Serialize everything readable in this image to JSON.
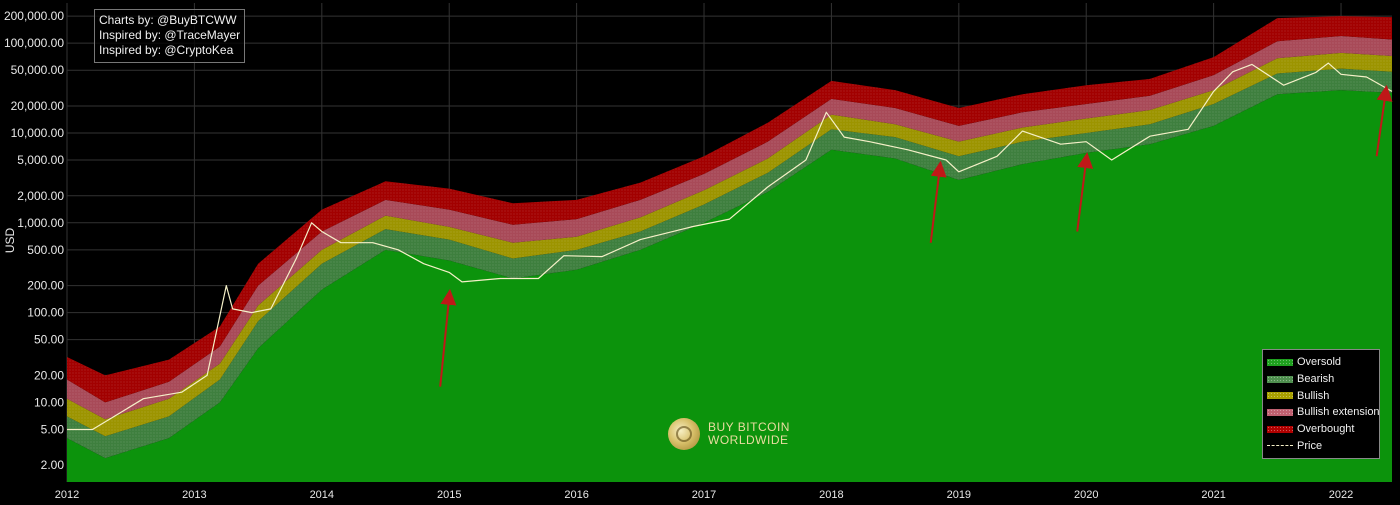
{
  "credits": [
    "Charts by: @BuyBTCWW",
    "Inspired by: @TraceMayer",
    "Inspired by: @CryptoKea"
  ],
  "brand": {
    "line1": "BUY BITCOIN",
    "line2": "WORLDWIDE"
  },
  "legend": {
    "placement": "bottom-right",
    "items": [
      {
        "label": "Oversold",
        "color": "#1ea01e"
      },
      {
        "label": "Bearish",
        "color": "#4f8f4f"
      },
      {
        "label": "Bullish",
        "color": "#a8a000"
      },
      {
        "label": "Bullish extension",
        "color": "#c06070"
      },
      {
        "label": "Overbought",
        "color": "#b00000"
      },
      {
        "label": "Price",
        "color": "#f5f0c8"
      }
    ]
  },
  "chart_data": {
    "type": "area",
    "ylabel": "USD",
    "yscale": "log",
    "ylim": [
      1.3,
      280000
    ],
    "xlim": [
      2012.0,
      2022.4
    ],
    "y_ticks": [
      {
        "value": 2,
        "label": "2.00"
      },
      {
        "value": 5,
        "label": "5.00"
      },
      {
        "value": 10,
        "label": "10.00"
      },
      {
        "value": 20,
        "label": "20.00"
      },
      {
        "value": 50,
        "label": "50.00"
      },
      {
        "value": 100,
        "label": "100.00"
      },
      {
        "value": 200,
        "label": "200.00"
      },
      {
        "value": 500,
        "label": "500.00"
      },
      {
        "value": 1000,
        "label": "1,000.00"
      },
      {
        "value": 2000,
        "label": "2,000.00"
      },
      {
        "value": 5000,
        "label": "5,000.00"
      },
      {
        "value": 10000,
        "label": "10,000.00"
      },
      {
        "value": 20000,
        "label": "20,000.00"
      },
      {
        "value": 50000,
        "label": "50,000.00"
      },
      {
        "value": 100000,
        "label": "100,000.00"
      },
      {
        "value": 200000,
        "label": "200,000.00"
      }
    ],
    "x_ticks": [
      "2012",
      "2013",
      "2014",
      "2015",
      "2016",
      "2017",
      "2018",
      "2019",
      "2020",
      "2021",
      "2022"
    ],
    "grid": true,
    "colors": {
      "oversold": "#0c930c",
      "bearish": "#3e7f3e",
      "bullish": "#9c9400",
      "bullish_extension": "#a84a58",
      "overbought": "#a20000",
      "price": "#f5f0c8",
      "arrow": "#c01818"
    },
    "band_boundaries": {
      "x": [
        2012.0,
        2012.3,
        2012.8,
        2013.2,
        2013.5,
        2014.0,
        2014.5,
        2015.0,
        2015.5,
        2016.0,
        2016.5,
        2017.0,
        2017.5,
        2018.0,
        2018.5,
        2019.0,
        2019.5,
        2020.0,
        2020.5,
        2021.0,
        2021.5,
        2022.0,
        2022.4
      ],
      "series": [
        {
          "key": "bearish_low",
          "values": [
            4,
            2.4,
            4,
            10,
            40,
            180,
            500,
            380,
            240,
            300,
            500,
            1000,
            2200,
            6500,
            5200,
            3000,
            4500,
            6000,
            7500,
            12000,
            27000,
            30000,
            28000
          ]
        },
        {
          "key": "bullish_low",
          "values": [
            7,
            4.2,
            7,
            18,
            80,
            350,
            850,
            650,
            400,
            500,
            800,
            1600,
            3600,
            11000,
            9000,
            5500,
            8000,
            10000,
            12500,
            21000,
            46000,
            52000,
            48000
          ]
        },
        {
          "key": "ext_low",
          "values": [
            11,
            6.5,
            11,
            27,
            120,
            500,
            1200,
            900,
            600,
            700,
            1150,
            2300,
            5200,
            16000,
            12500,
            8000,
            11500,
            14500,
            18000,
            30000,
            68000,
            78000,
            72000
          ]
        },
        {
          "key": "ob_low",
          "values": [
            18,
            10,
            17,
            42,
            200,
            800,
            1800,
            1400,
            950,
            1100,
            1800,
            3500,
            8000,
            24000,
            19000,
            12000,
            17000,
            21000,
            26000,
            44000,
            105000,
            120000,
            110000
          ]
        },
        {
          "key": "ob_high",
          "values": [
            32,
            20,
            30,
            70,
            350,
            1400,
            2900,
            2400,
            1650,
            1800,
            2800,
            5500,
            13000,
            38000,
            30000,
            19000,
            27000,
            34000,
            40000,
            70000,
            190000,
            200000,
            195000
          ]
        }
      ]
    },
    "price": {
      "x": [
        2012.0,
        2012.2,
        2012.6,
        2012.9,
        2013.1,
        2013.25,
        2013.3,
        2013.45,
        2013.6,
        2013.8,
        2013.92,
        2014.0,
        2014.15,
        2014.4,
        2014.6,
        2014.8,
        2015.0,
        2015.1,
        2015.4,
        2015.7,
        2015.9,
        2016.2,
        2016.5,
        2016.9,
        2017.2,
        2017.5,
        2017.8,
        2017.96,
        2018.1,
        2018.3,
        2018.6,
        2018.9,
        2019.0,
        2019.3,
        2019.5,
        2019.8,
        2020.0,
        2020.2,
        2020.5,
        2020.8,
        2021.0,
        2021.15,
        2021.3,
        2021.55,
        2021.8,
        2021.9,
        2022.0,
        2022.2,
        2022.4
      ],
      "values": [
        5,
        5,
        11,
        13,
        20,
        200,
        110,
        100,
        110,
        400,
        1000,
        800,
        600,
        600,
        500,
        350,
        280,
        220,
        240,
        240,
        430,
        420,
        650,
        900,
        1100,
        2500,
        5000,
        17000,
        9000,
        8000,
        6500,
        5000,
        3700,
        5500,
        10500,
        7500,
        8000,
        5000,
        9200,
        11000,
        29000,
        48000,
        58000,
        34000,
        47000,
        60000,
        45000,
        42000,
        29000
      ]
    },
    "annotations": [
      {
        "type": "arrow",
        "x": 2015.0,
        "y_from": 15,
        "y_to": 150
      },
      {
        "type": "arrow",
        "x": 2018.85,
        "y_from": 600,
        "y_to": 4000
      },
      {
        "type": "arrow",
        "x": 2020.0,
        "y_from": 800,
        "y_to": 5000
      },
      {
        "type": "arrow",
        "x": 2022.35,
        "y_from": 5500,
        "y_to": 28000
      }
    ]
  }
}
